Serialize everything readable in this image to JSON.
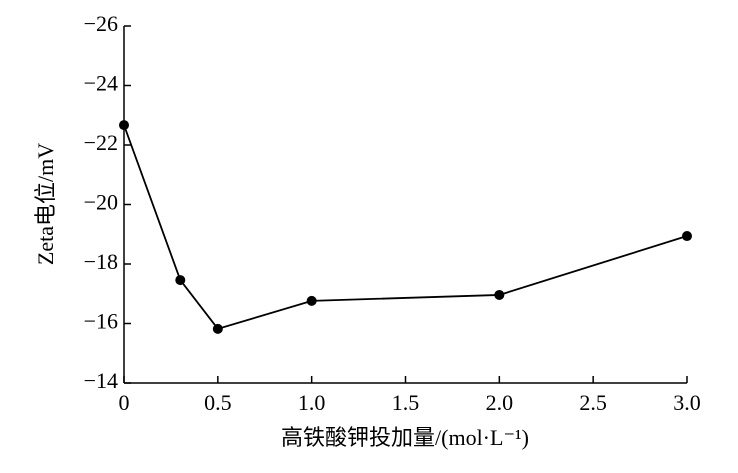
{
  "chart_data": {
    "type": "line",
    "x_label": "高铁酸钾投加量/(mol·L⁻¹)",
    "y_label": "Zeta电位/mV",
    "x": [
      0,
      0.3,
      0.5,
      1.0,
      2.0,
      3.0
    ],
    "series": [
      {
        "color": "#000000",
        "values": [
          -22.67,
          -17.46,
          -15.82,
          -16.76,
          -16.96,
          -18.94
        ]
      }
    ],
    "xlim": [
      0,
      3
    ],
    "ylim": [
      -14,
      -26
    ],
    "xticks": [
      0,
      0.5,
      {
        "value": 1,
        "label": "1.0"
      },
      1.5,
      {
        "value": 2,
        "label": "2.0"
      },
      2.5,
      {
        "value": 3,
        "label": "3.0"
      }
    ],
    "yticks": [
      {
        "value": -14,
        "label": "−14"
      },
      {
        "value": -16,
        "label": "−16"
      },
      {
        "value": -18,
        "label": "−18"
      },
      {
        "value": -20,
        "label": "−20"
      },
      {
        "value": -22,
        "label": "−22"
      },
      {
        "value": -24,
        "label": "−24"
      },
      {
        "value": -26,
        "label": "−26"
      }
    ],
    "grid": false
  }
}
